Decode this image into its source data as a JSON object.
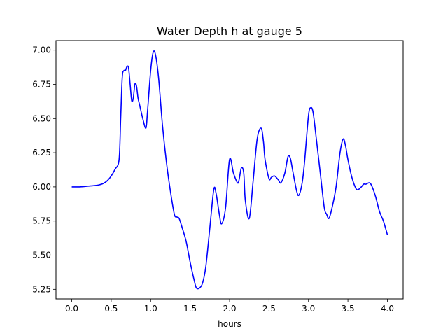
{
  "chart_data": {
    "type": "line",
    "title": "Water Depth h at gauge 5",
    "xlabel": "hours",
    "ylabel": "",
    "xlim": [
      -0.2,
      4.2
    ],
    "ylim": [
      5.18,
      7.07
    ],
    "xticks": [
      0.0,
      0.5,
      1.0,
      1.5,
      2.0,
      2.5,
      3.0,
      3.5,
      4.0
    ],
    "xtick_labels": [
      "0.0",
      "0.5",
      "1.0",
      "1.5",
      "2.0",
      "2.5",
      "3.0",
      "3.5",
      "4.0"
    ],
    "yticks": [
      5.25,
      5.5,
      5.75,
      6.0,
      6.25,
      6.5,
      6.75,
      7.0
    ],
    "ytick_labels": [
      "5.25",
      "5.50",
      "5.75",
      "6.00",
      "6.25",
      "6.50",
      "6.75",
      "7.00"
    ],
    "grid": false,
    "series": [
      {
        "color": "#0000ff",
        "x": [
          0.0,
          0.1,
          0.2,
          0.3,
          0.35,
          0.4,
          0.45,
          0.5,
          0.55,
          0.6,
          0.62,
          0.64,
          0.66,
          0.68,
          0.7,
          0.72,
          0.74,
          0.76,
          0.78,
          0.8,
          0.82,
          0.84,
          0.86,
          0.9,
          0.94,
          0.96,
          1.0,
          1.03,
          1.06,
          1.1,
          1.15,
          1.2,
          1.25,
          1.3,
          1.33,
          1.36,
          1.4,
          1.45,
          1.5,
          1.55,
          1.58,
          1.62,
          1.66,
          1.7,
          1.75,
          1.8,
          1.83,
          1.87,
          1.9,
          1.95,
          2.0,
          2.05,
          2.1,
          2.12,
          2.15,
          2.18,
          2.2,
          2.25,
          2.3,
          2.35,
          2.4,
          2.43,
          2.45,
          2.5,
          2.53,
          2.57,
          2.62,
          2.65,
          2.7,
          2.74,
          2.77,
          2.8,
          2.85,
          2.88,
          2.92,
          2.95,
          3.0,
          3.03,
          3.06,
          3.1,
          3.15,
          3.2,
          3.23,
          3.26,
          3.3,
          3.35,
          3.4,
          3.44,
          3.47,
          3.5,
          3.55,
          3.6,
          3.63,
          3.67,
          3.7,
          3.73,
          3.77,
          3.8,
          3.85,
          3.9,
          3.95,
          4.0
        ],
        "y": [
          6.0,
          6.0,
          6.005,
          6.01,
          6.015,
          6.025,
          6.045,
          6.08,
          6.13,
          6.2,
          6.5,
          6.8,
          6.85,
          6.85,
          6.88,
          6.87,
          6.75,
          6.63,
          6.65,
          6.75,
          6.74,
          6.65,
          6.6,
          6.5,
          6.43,
          6.55,
          6.85,
          6.98,
          6.97,
          6.8,
          6.45,
          6.18,
          5.97,
          5.8,
          5.78,
          5.77,
          5.7,
          5.6,
          5.45,
          5.32,
          5.26,
          5.26,
          5.3,
          5.42,
          5.7,
          5.98,
          5.95,
          5.8,
          5.73,
          5.85,
          6.2,
          6.1,
          6.03,
          6.05,
          6.14,
          6.1,
          5.9,
          5.77,
          6.05,
          6.35,
          6.43,
          6.33,
          6.2,
          6.06,
          6.07,
          6.08,
          6.05,
          6.03,
          6.1,
          6.22,
          6.21,
          6.12,
          5.97,
          5.94,
          6.03,
          6.18,
          6.52,
          6.58,
          6.54,
          6.35,
          6.1,
          5.85,
          5.8,
          5.77,
          5.85,
          6.0,
          6.25,
          6.35,
          6.3,
          6.2,
          6.07,
          5.99,
          5.98,
          6.0,
          6.02,
          6.02,
          6.03,
          6.01,
          5.93,
          5.82,
          5.75,
          5.65
        ]
      }
    ]
  }
}
